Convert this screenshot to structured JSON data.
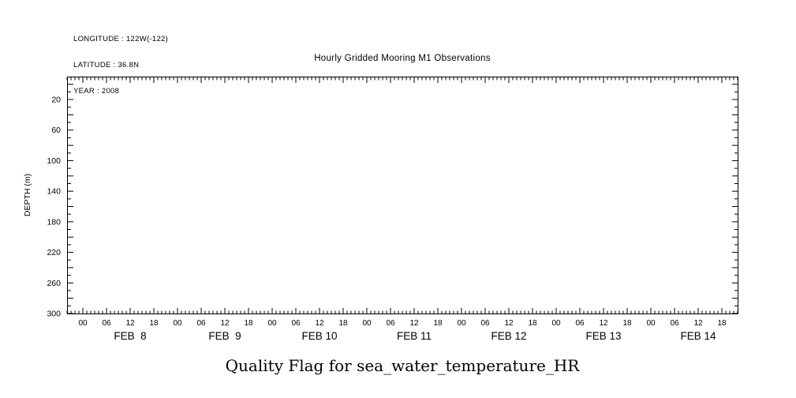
{
  "annotations": {
    "longitude": "LONGITUDE : 122W(-122)",
    "latitude": "LATITUDE : 36.8N",
    "year": "YEAR : 2008"
  },
  "colors": {
    "foreground": "#000000",
    "background": "#ffffff"
  },
  "chart_data": {
    "type": "line",
    "title": "Hourly Gridded Mooring M1 Observations",
    "caption": "Quality Flag for sea_water_temperature_HR",
    "xlabel": "",
    "ylabel": "DEPTH (m)",
    "grid": false,
    "legend": "none",
    "series": [],
    "y_ticks": [
      20,
      60,
      100,
      140,
      180,
      220,
      260,
      300
    ],
    "ylim": [
      -10,
      300
    ],
    "y_minor_step": 10,
    "y_major_step": 20,
    "x_days": [
      "FEB  8",
      "FEB  9",
      "FEB 10",
      "FEB 11",
      "FEB 12",
      "FEB 13",
      "FEB 14"
    ],
    "hour_labels": [
      "00",
      "06",
      "12",
      "18"
    ],
    "hour_values": [
      0,
      6,
      12,
      18
    ],
    "x_start_hour": -4,
    "x_total_hours": 170,
    "x_minor_step_hours": 1,
    "x_major_step_hours": 6
  }
}
